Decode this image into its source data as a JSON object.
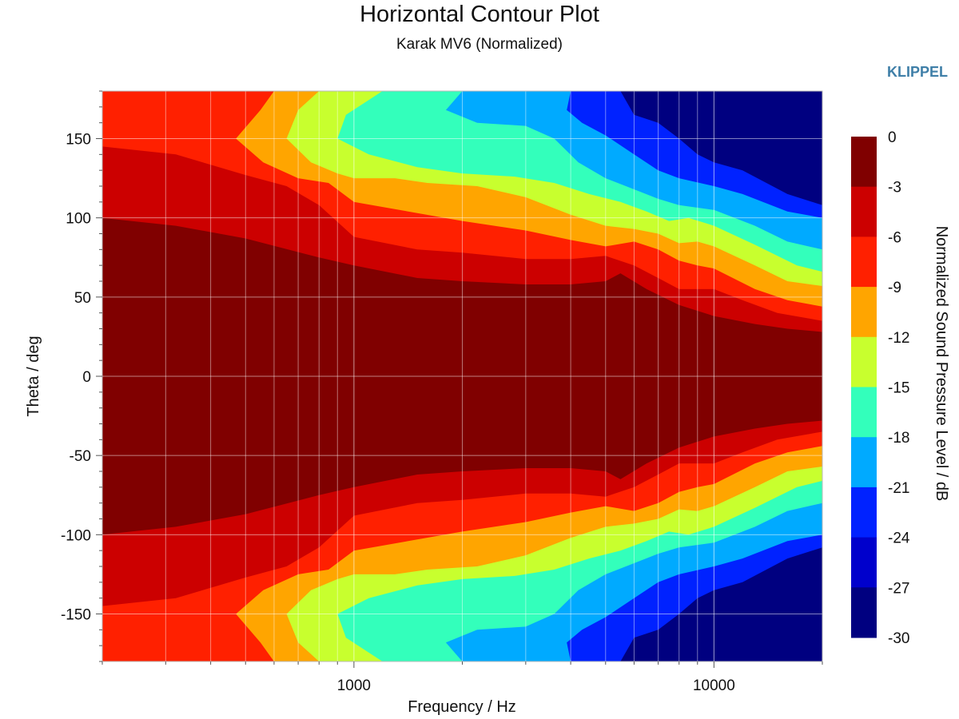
{
  "header": {
    "title": "Horizontal Contour Plot",
    "subtitle": "Karak MV6 (Normalized)",
    "brand": "KLIPPEL"
  },
  "chart_data": {
    "type": "heatmap",
    "title": "Horizontal Contour Plot",
    "subtitle": "Karak MV6 (Normalized)",
    "xlabel": "Frequency / Hz",
    "ylabel": "Theta / deg",
    "x_scale": "log",
    "xlim": [
      200,
      20000
    ],
    "ylim": [
      -180,
      180
    ],
    "x_ticks": [
      1000,
      10000
    ],
    "x_tick_labels": [
      "1000",
      "10000"
    ],
    "y_ticks": [
      150,
      100,
      50,
      0,
      -50,
      -100,
      -150
    ],
    "y_tick_labels": [
      "150",
      "100",
      "50",
      "0",
      "-50",
      "-100",
      "-150"
    ],
    "grid": true,
    "symmetric_about_zero": true,
    "colorbar": {
      "label": "Normalized Sound Pressure Level / dB",
      "ticks": [
        0,
        -3,
        -6,
        -9,
        -12,
        -15,
        -18,
        -21,
        -24,
        -27,
        -30
      ],
      "tick_labels": [
        "0",
        "-3",
        "-6",
        "-9",
        "-12",
        "-15",
        "-18",
        "-21",
        "-24",
        "-27",
        "-30"
      ],
      "bands": [
        {
          "from": -3,
          "to": 0,
          "color": "#800000"
        },
        {
          "from": -6,
          "to": -3,
          "color": "#cc0000"
        },
        {
          "from": -9,
          "to": -6,
          "color": "#ff2000"
        },
        {
          "from": -12,
          "to": -9,
          "color": "#ffa500"
        },
        {
          "from": -15,
          "to": -12,
          "color": "#c8ff2e"
        },
        {
          "from": -18,
          "to": -15,
          "color": "#33ffbb"
        },
        {
          "from": -21,
          "to": -18,
          "color": "#00aaff"
        },
        {
          "from": -24,
          "to": -21,
          "color": "#0022ff"
        },
        {
          "from": -27,
          "to": -24,
          "color": "#0000cc"
        },
        {
          "from": -30,
          "to": -27,
          "color": "#000080"
        }
      ]
    },
    "contour_boundaries": [
      {
        "level": -3,
        "points": [
          [
            200,
            100
          ],
          [
            320,
            95
          ],
          [
            500,
            87
          ],
          [
            800,
            75
          ],
          [
            1000,
            70
          ],
          [
            1500,
            62
          ],
          [
            2000,
            60
          ],
          [
            3000,
            58
          ],
          [
            4000,
            58
          ],
          [
            5000,
            60
          ],
          [
            5500,
            65
          ],
          [
            6500,
            55
          ],
          [
            8000,
            45
          ],
          [
            10000,
            38
          ],
          [
            13000,
            33
          ],
          [
            16000,
            30
          ],
          [
            20000,
            28
          ]
        ]
      },
      {
        "level": -6,
        "points": [
          [
            200,
            145
          ],
          [
            320,
            140
          ],
          [
            500,
            127
          ],
          [
            650,
            120
          ],
          [
            800,
            108
          ],
          [
            1000,
            88
          ],
          [
            1500,
            80
          ],
          [
            2000,
            78
          ],
          [
            3000,
            74
          ],
          [
            4000,
            74
          ],
          [
            5000,
            76
          ],
          [
            6000,
            70
          ],
          [
            7000,
            62
          ],
          [
            8000,
            55
          ],
          [
            10000,
            55
          ],
          [
            12000,
            48
          ],
          [
            15000,
            40
          ],
          [
            20000,
            35
          ]
        ]
      },
      {
        "level": -9,
        "points": [
          [
            600,
            180
          ],
          [
            550,
            168
          ],
          [
            470,
            150
          ],
          [
            560,
            135
          ],
          [
            700,
            125
          ],
          [
            850,
            122
          ],
          [
            1000,
            110
          ],
          [
            1500,
            103
          ],
          [
            2000,
            98
          ],
          [
            3000,
            92
          ],
          [
            4000,
            86
          ],
          [
            5000,
            82
          ],
          [
            6000,
            85
          ],
          [
            7000,
            80
          ],
          [
            8000,
            73
          ],
          [
            9000,
            70
          ],
          [
            10000,
            68
          ],
          [
            13000,
            55
          ],
          [
            16000,
            48
          ],
          [
            20000,
            44
          ]
        ]
      },
      {
        "level": -12,
        "points": [
          [
            800,
            180
          ],
          [
            700,
            168
          ],
          [
            650,
            150
          ],
          [
            760,
            135
          ],
          [
            900,
            128
          ],
          [
            1000,
            125
          ],
          [
            1300,
            125
          ],
          [
            1600,
            122
          ],
          [
            2200,
            120
          ],
          [
            3000,
            113
          ],
          [
            4000,
            102
          ],
          [
            5000,
            95
          ],
          [
            6000,
            93
          ],
          [
            7000,
            90
          ],
          [
            8000,
            84
          ],
          [
            9000,
            85
          ],
          [
            10000,
            82
          ],
          [
            13000,
            70
          ],
          [
            16000,
            60
          ],
          [
            20000,
            57
          ]
        ]
      },
      {
        "level": -15,
        "points": [
          [
            1200,
            180
          ],
          [
            950,
            165
          ],
          [
            900,
            150
          ],
          [
            1100,
            140
          ],
          [
            1500,
            132
          ],
          [
            2000,
            128
          ],
          [
            2800,
            126
          ],
          [
            3600,
            122
          ],
          [
            4500,
            115
          ],
          [
            5500,
            110
          ],
          [
            6500,
            104
          ],
          [
            7500,
            98
          ],
          [
            8500,
            100
          ],
          [
            10000,
            95
          ],
          [
            13000,
            83
          ],
          [
            17000,
            70
          ],
          [
            20000,
            66
          ]
        ]
      },
      {
        "level": -18,
        "points": [
          [
            2000,
            180
          ],
          [
            1800,
            168
          ],
          [
            2200,
            160
          ],
          [
            3000,
            158
          ],
          [
            3600,
            150
          ],
          [
            4200,
            135
          ],
          [
            5000,
            125
          ],
          [
            6000,
            118
          ],
          [
            7000,
            112
          ],
          [
            8000,
            108
          ],
          [
            10000,
            105
          ],
          [
            13000,
            95
          ],
          [
            16000,
            85
          ],
          [
            20000,
            80
          ]
        ]
      },
      {
        "level": -21,
        "points": [
          [
            4000,
            180
          ],
          [
            3900,
            168
          ],
          [
            4300,
            160
          ],
          [
            5000,
            152
          ],
          [
            6000,
            140
          ],
          [
            7000,
            130
          ],
          [
            8000,
            125
          ],
          [
            10000,
            120
          ],
          [
            12000,
            115
          ],
          [
            16000,
            104
          ],
          [
            20000,
            100
          ]
        ]
      },
      {
        "level": -24,
        "points": [
          [
            5500,
            180
          ],
          [
            6000,
            165
          ],
          [
            7000,
            160
          ],
          [
            8000,
            150
          ],
          [
            9000,
            140
          ],
          [
            10000,
            135
          ],
          [
            12000,
            130
          ],
          [
            16000,
            115
          ],
          [
            20000,
            108
          ]
        ]
      }
    ]
  }
}
